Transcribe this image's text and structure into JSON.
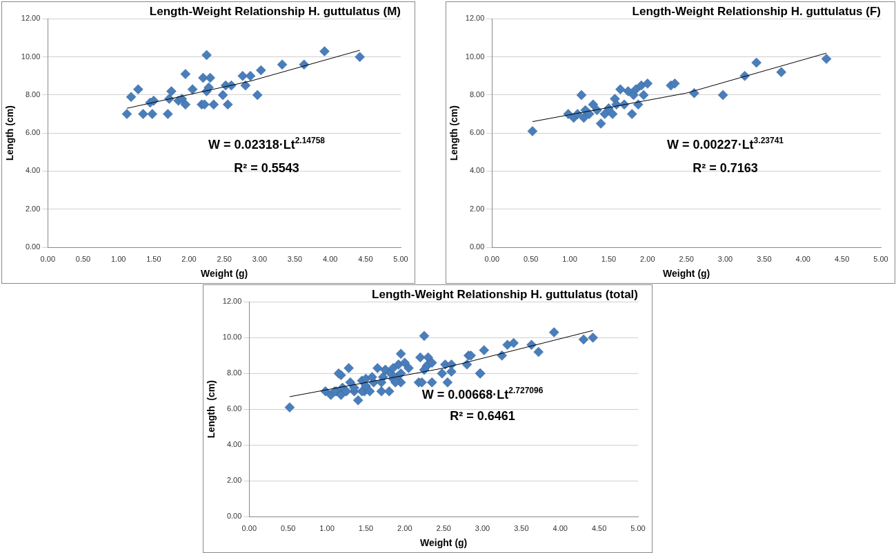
{
  "chart_data": [
    {
      "type": "scatter",
      "title": "Length-Weight Relationship H. guttulatus (M)",
      "xlabel": "Weight (g)",
      "ylabel": "Length (cm)",
      "annotations": [
        "W = 0.02318·Lt$^{2.14758}$",
        "R² = 0.5543"
      ],
      "xlim": [
        0,
        5
      ],
      "ylim": [
        0,
        12
      ],
      "xticks": [
        {
          "value": 0,
          "label": "0.00"
        },
        {
          "value": 0.5,
          "label": "0.50"
        },
        {
          "value": 1,
          "label": "1.00"
        },
        {
          "value": 1.5,
          "label": "1.50"
        },
        {
          "value": 2,
          "label": "2.00"
        },
        {
          "value": 2.5,
          "label": "2.50"
        },
        {
          "value": 3,
          "label": "3.00"
        },
        {
          "value": 3.5,
          "label": "3.50"
        },
        {
          "value": 4,
          "label": "4.00"
        },
        {
          "value": 4.5,
          "label": "4.50"
        },
        {
          "value": 5,
          "label": "5.00"
        }
      ],
      "yticks": [
        {
          "value": 0,
          "label": "0.00"
        },
        {
          "value": 2,
          "label": "2.00"
        },
        {
          "value": 4,
          "label": "4.00"
        },
        {
          "value": 6,
          "label": "6.00"
        },
        {
          "value": 8,
          "label": "8.00"
        },
        {
          "value": 10,
          "label": "10.00"
        },
        {
          "value": 12,
          "label": "12.00"
        }
      ],
      "grid": "y",
      "legend": false,
      "marker": "diamond",
      "series": [
        {
          "type": "scatter",
          "color": "#4a7ebb",
          "x": [
            1.12,
            1.18,
            1.28,
            1.35,
            1.45,
            1.48,
            1.5,
            1.7,
            1.72,
            1.75,
            1.85,
            1.9,
            1.95,
            1.95,
            2.05,
            2.18,
            2.2,
            2.22,
            2.25,
            2.25,
            2.28,
            2.3,
            2.35,
            2.48,
            2.52,
            2.55,
            2.6,
            2.8,
            2.76,
            2.87,
            2.97,
            3.02,
            3.32,
            3.63,
            3.92,
            4.42
          ],
          "values": [
            7.0,
            7.9,
            8.3,
            7.0,
            7.6,
            7.0,
            7.7,
            7.0,
            7.8,
            8.2,
            7.7,
            7.8,
            7.5,
            9.1,
            8.3,
            7.5,
            8.9,
            7.5,
            10.1,
            8.2,
            8.4,
            8.9,
            7.5,
            8.0,
            8.5,
            7.5,
            8.5,
            8.5,
            9.0,
            9.0,
            8.0,
            9.3,
            9.6,
            9.6,
            10.3,
            10.0
          ]
        },
        {
          "type": "line",
          "color": "#000000",
          "marker": "none",
          "x": [
            1.12,
            2.87,
            4.42
          ],
          "values": [
            7.3,
            8.73,
            10.35
          ]
        }
      ]
    },
    {
      "type": "scatter",
      "title": "Length-Weight Relationship H. guttulatus (F)",
      "xlabel": "Weight (g)",
      "ylabel": "Length (cm)",
      "annotations": [
        "W = 0.00227·Lt$^{3.23741}$",
        "R² = 0.7163"
      ],
      "xlim": [
        0,
        5
      ],
      "ylim": [
        0,
        12
      ],
      "xticks": [
        {
          "value": 0,
          "label": "0.00"
        },
        {
          "value": 0.5,
          "label": "0.50"
        },
        {
          "value": 1,
          "label": "1.00"
        },
        {
          "value": 1.5,
          "label": "1.50"
        },
        {
          "value": 2,
          "label": "2.00"
        },
        {
          "value": 2.5,
          "label": "2.50"
        },
        {
          "value": 3,
          "label": "3.00"
        },
        {
          "value": 3.5,
          "label": "3.50"
        },
        {
          "value": 4,
          "label": "4.00"
        },
        {
          "value": 4.5,
          "label": "4.50"
        },
        {
          "value": 5,
          "label": "5.00"
        }
      ],
      "yticks": [
        {
          "value": 0,
          "label": "0.00"
        },
        {
          "value": 2,
          "label": "2.00"
        },
        {
          "value": 4,
          "label": "4.00"
        },
        {
          "value": 6,
          "label": "6.00"
        },
        {
          "value": 8,
          "label": "8.00"
        },
        {
          "value": 10,
          "label": "10.00"
        },
        {
          "value": 12,
          "label": "12.00"
        }
      ],
      "grid": "y",
      "legend": false,
      "marker": "diamond",
      "series": [
        {
          "type": "scatter",
          "color": "#4a7ebb",
          "x": [
            0.52,
            0.98,
            1.05,
            1.1,
            1.15,
            1.18,
            1.2,
            1.25,
            1.3,
            1.35,
            1.4,
            1.45,
            1.5,
            1.55,
            1.58,
            1.6,
            1.65,
            1.7,
            1.75,
            1.8,
            1.82,
            1.85,
            1.88,
            1.92,
            1.95,
            2.0,
            2.3,
            2.35,
            2.6,
            2.97,
            3.25,
            3.4,
            3.72,
            4.3
          ],
          "values": [
            6.1,
            7.0,
            6.8,
            7.0,
            8.0,
            6.8,
            7.2,
            7.0,
            7.5,
            7.2,
            6.5,
            7.0,
            7.3,
            7.0,
            7.8,
            7.5,
            8.3,
            7.5,
            8.2,
            7.0,
            8.0,
            8.3,
            7.5,
            8.5,
            8.0,
            8.6,
            8.5,
            8.6,
            8.1,
            8.0,
            9.0,
            9.7,
            9.2,
            9.9
          ]
        },
        {
          "type": "line",
          "color": "#000000",
          "marker": "none",
          "x": [
            0.52,
            2.5,
            4.3
          ],
          "values": [
            6.6,
            8.1,
            10.2
          ]
        }
      ]
    },
    {
      "type": "scatter",
      "title": "Length-Weight Relationship H. guttulatus (total)",
      "xlabel": "Weight (g)",
      "ylabel": "Length  (cm)",
      "annotations": [
        "W = 0.00668·Lt$^{2.727096}$",
        "R² = 0.6461"
      ],
      "xlim": [
        0,
        5
      ],
      "ylim": [
        0,
        12
      ],
      "xticks": [
        {
          "value": 0,
          "label": "0.00"
        },
        {
          "value": 0.5,
          "label": "0.50"
        },
        {
          "value": 1,
          "label": "1.00"
        },
        {
          "value": 1.5,
          "label": "1.50"
        },
        {
          "value": 2,
          "label": "2.00"
        },
        {
          "value": 2.5,
          "label": "2.50"
        },
        {
          "value": 3,
          "label": "3.00"
        },
        {
          "value": 3.5,
          "label": "3.50"
        },
        {
          "value": 4,
          "label": "4.00"
        },
        {
          "value": 4.5,
          "label": "4.50"
        },
        {
          "value": 5,
          "label": "5.00"
        }
      ],
      "yticks": [
        {
          "value": 0,
          "label": "0.00"
        },
        {
          "value": 2,
          "label": "2.00"
        },
        {
          "value": 4,
          "label": "4.00"
        },
        {
          "value": 6,
          "label": "6.00"
        },
        {
          "value": 8,
          "label": "8.00"
        },
        {
          "value": 10,
          "label": "10.00"
        },
        {
          "value": 12,
          "label": "12.00"
        }
      ],
      "grid": "y",
      "legend": false,
      "marker": "diamond",
      "series": [
        {
          "type": "scatter",
          "color": "#4a7ebb",
          "x": [
            1.12,
            1.18,
            1.28,
            1.35,
            1.45,
            1.48,
            1.5,
            1.7,
            1.72,
            1.75,
            1.85,
            1.9,
            1.95,
            1.95,
            2.05,
            2.18,
            2.2,
            2.22,
            2.25,
            2.25,
            2.28,
            2.3,
            2.35,
            2.48,
            2.52,
            2.55,
            2.6,
            2.8,
            2.82,
            2.85,
            2.97,
            3.02,
            3.32,
            3.63,
            3.92,
            4.42,
            0.52,
            0.98,
            1.05,
            1.1,
            1.15,
            1.18,
            1.2,
            1.25,
            1.3,
            1.35,
            1.4,
            1.45,
            1.5,
            1.55,
            1.58,
            1.6,
            1.65,
            1.7,
            1.75,
            1.8,
            1.82,
            1.85,
            1.88,
            1.92,
            1.95,
            2.0,
            2.3,
            2.35,
            2.6,
            2.97,
            3.25,
            3.4,
            3.72,
            4.3
          ],
          "values": [
            7.0,
            7.9,
            8.3,
            7.0,
            7.6,
            7.0,
            7.7,
            7.0,
            7.8,
            8.2,
            7.7,
            7.8,
            7.5,
            9.1,
            8.3,
            7.5,
            8.9,
            7.5,
            10.1,
            8.2,
            8.4,
            8.9,
            7.5,
            8.0,
            8.5,
            7.5,
            8.5,
            8.5,
            9.0,
            9.0,
            8.0,
            9.3,
            9.6,
            9.6,
            10.3,
            10.0,
            6.1,
            7.0,
            6.8,
            7.0,
            8.0,
            6.8,
            7.2,
            7.0,
            7.5,
            7.2,
            6.5,
            7.0,
            7.3,
            7.0,
            7.8,
            7.5,
            8.3,
            7.5,
            8.2,
            7.0,
            8.0,
            8.3,
            7.5,
            8.5,
            8.0,
            8.6,
            8.5,
            8.6,
            8.1,
            8.0,
            9.0,
            9.7,
            9.2,
            9.9
          ]
        },
        {
          "type": "line",
          "color": "#000000",
          "marker": "none",
          "x": [
            0.52,
            2.5,
            4.42
          ],
          "values": [
            6.7,
            8.3,
            10.4
          ]
        }
      ]
    }
  ]
}
